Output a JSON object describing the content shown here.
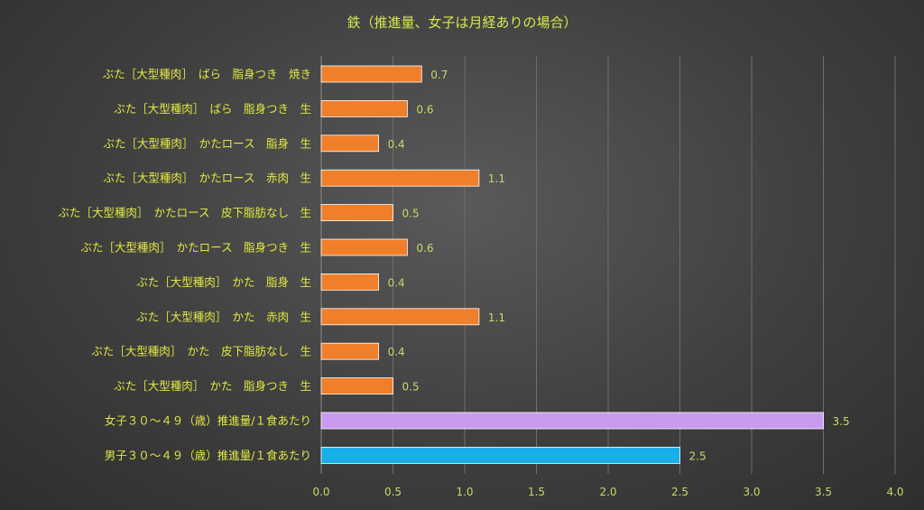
{
  "chart_data": {
    "type": "bar",
    "orientation": "horizontal",
    "title": "鉄（推進量、女子は月経ありの場合）",
    "xlabel": "",
    "ylabel": "",
    "xlim": [
      0,
      4
    ],
    "x_ticks": [
      "0.0",
      "0.5",
      "1.0",
      "1.5",
      "2.0",
      "2.5",
      "3.0",
      "3.5",
      "4.0"
    ],
    "grid": true,
    "legend": "none",
    "categories": [
      "ぶた［大型種肉］　ばら　脂身つき　焼き",
      "ぶた［大型種肉］　ばら　脂身つき　生",
      "ぶた［大型種肉］　かたロース　脂身　生",
      "ぶた［大型種肉］　かたロース　赤肉　生",
      "ぶた［大型種肉］　かたロース　皮下脂肪なし　生",
      "ぶた［大型種肉］　かたロース　脂身つき　生",
      "ぶた［大型種肉］　かた　脂身　生",
      "ぶた［大型種肉］　かた　赤肉　生",
      "ぶた［大型種肉］　かた　皮下脂肪なし　生",
      "ぶた［大型種肉］　かた　脂身つき　生",
      "女子３０～４９（歳）推進量/１食あたり",
      "男子３０～４９（歳）推進量/１食あたり"
    ],
    "values": [
      0.7,
      0.6,
      0.4,
      1.1,
      0.5,
      0.6,
      0.4,
      1.1,
      0.4,
      0.5,
      3.5,
      2.5
    ],
    "value_labels": [
      "0.7",
      "0.6",
      "0.4",
      "1.1",
      "0.5",
      "0.6",
      "0.4",
      "1.1",
      "0.4",
      "0.5",
      "3.5",
      "2.5"
    ],
    "colors": [
      "#f07f2c",
      "#f07f2c",
      "#f07f2c",
      "#f07f2c",
      "#f07f2c",
      "#f07f2c",
      "#f07f2c",
      "#f07f2c",
      "#f07f2c",
      "#f07f2c",
      "#c89af0",
      "#1aaee8"
    ]
  }
}
